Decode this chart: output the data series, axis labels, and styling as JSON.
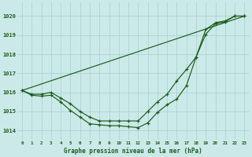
{
  "title": "Graphe pression niveau de la mer (hPa)",
  "bg_color": "#cce9e9",
  "grid_color": "#aad4d4",
  "line_color": "#1a5c1a",
  "ylim": [
    1013.5,
    1020.7
  ],
  "yticks": [
    1014,
    1015,
    1016,
    1017,
    1018,
    1019,
    1020
  ],
  "xlim": [
    -0.5,
    23.5
  ],
  "series_straight": {
    "x": [
      0,
      23
    ],
    "y": [
      1016.1,
      1020.0
    ]
  },
  "series_upper": [
    1016.1,
    1015.9,
    1015.9,
    1016.0,
    1015.7,
    1015.4,
    1015.0,
    1014.7,
    1014.5,
    1014.5,
    1014.5,
    1014.5,
    1014.5,
    1015.0,
    1015.5,
    1015.9,
    1016.6,
    1017.2,
    1017.85,
    1019.3,
    1019.65,
    1019.75,
    1020.0,
    1020.0
  ],
  "series_lower": [
    1016.1,
    1015.85,
    1015.8,
    1015.85,
    1015.5,
    1015.05,
    1014.7,
    1014.35,
    1014.3,
    1014.25,
    1014.25,
    1014.2,
    1014.15,
    1014.4,
    1014.95,
    1015.35,
    1015.65,
    1016.35,
    1017.85,
    1019.05,
    1019.6,
    1019.7,
    1020.0,
    1020.0
  ]
}
